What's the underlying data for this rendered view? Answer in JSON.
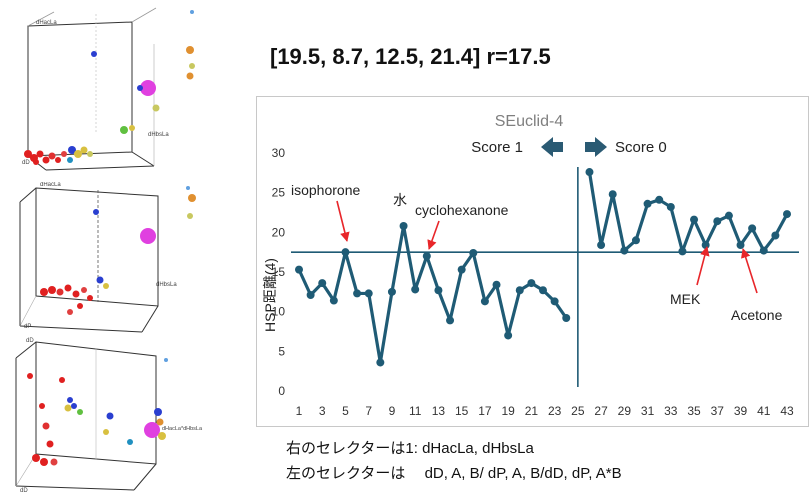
{
  "headline": "[19.5, 8.7, 12.5, 21.4] r=17.5",
  "notes": {
    "line1": "右のセレクターは1: dHacLa, dHbsLa",
    "line2": "左のセレクターは　 dD, A, B/ dP, A, B/dD, dP, A*B"
  },
  "plots3d": [
    {
      "axis_top": "dHacLa",
      "axis_right": "dHbsLa",
      "axis_bottom": "dD"
    },
    {
      "axis_top": "dHacLa",
      "axis_right": "dHbsLa",
      "axis_bottom": "dP"
    },
    {
      "axis_top": "dD",
      "axis_right": "dHacLa*dHbsLa",
      "axis_bottom": "dD"
    }
  ],
  "score_labels": {
    "left": "Score 1",
    "right": "Score 0"
  },
  "colors": {
    "series": "#1f5b75",
    "annotation_arrow": "#e8262a",
    "threshold_line": "#1f5b75",
    "score_arrow": "#2a5a73"
  },
  "chart_data": {
    "type": "line",
    "title": "SEuclid-4",
    "ylabel": "HSP距離(4)",
    "xlabel": "",
    "ylim": [
      0,
      30
    ],
    "yticks": [
      0,
      5,
      10,
      15,
      20,
      25,
      30
    ],
    "xticks": [
      1,
      3,
      5,
      7,
      9,
      11,
      13,
      15,
      17,
      19,
      21,
      23,
      25,
      27,
      29,
      31,
      33,
      35,
      37,
      39,
      41,
      43
    ],
    "xlim": [
      1,
      43
    ],
    "threshold": 17.5,
    "divider_x": 25,
    "series": [
      {
        "segments": [
          {
            "x": [
              1,
              2,
              3,
              4,
              5,
              6,
              7,
              8,
              9,
              10,
              11,
              12,
              13,
              14,
              15,
              16,
              17,
              18,
              19,
              20,
              21,
              22,
              23,
              24
            ],
            "y": [
              15.3,
              12.1,
              13.6,
              11.4,
              17.5,
              12.3,
              12.3,
              3.6,
              12.5,
              20.8,
              12.8,
              17.0,
              12.7,
              8.9,
              15.3,
              17.4,
              11.3,
              13.4,
              7.0,
              12.7,
              13.6,
              12.7,
              11.3,
              9.2
            ]
          },
          {
            "x": [
              26,
              27,
              28,
              29,
              30,
              31,
              32,
              33,
              34,
              35,
              36,
              37,
              38,
              39,
              40,
              41,
              42,
              43
            ],
            "y": [
              27.6,
              18.4,
              24.8,
              17.7,
              19.0,
              23.6,
              24.1,
              23.2,
              17.6,
              21.6,
              18.4,
              21.4,
              22.1,
              18.4,
              20.5,
              17.7,
              19.6,
              22.3
            ]
          }
        ]
      }
    ],
    "annotations": [
      {
        "text": "isophorone",
        "x": 5,
        "y": 17.5
      },
      {
        "text": "水",
        "x": 10,
        "y": 20.8
      },
      {
        "text": "cyclohexanone",
        "x": 12,
        "y": 17.0
      },
      {
        "text": "MEK",
        "x": 36,
        "y": 18.4
      },
      {
        "text": "Acetone",
        "x": 39,
        "y": 18.4
      }
    ]
  }
}
